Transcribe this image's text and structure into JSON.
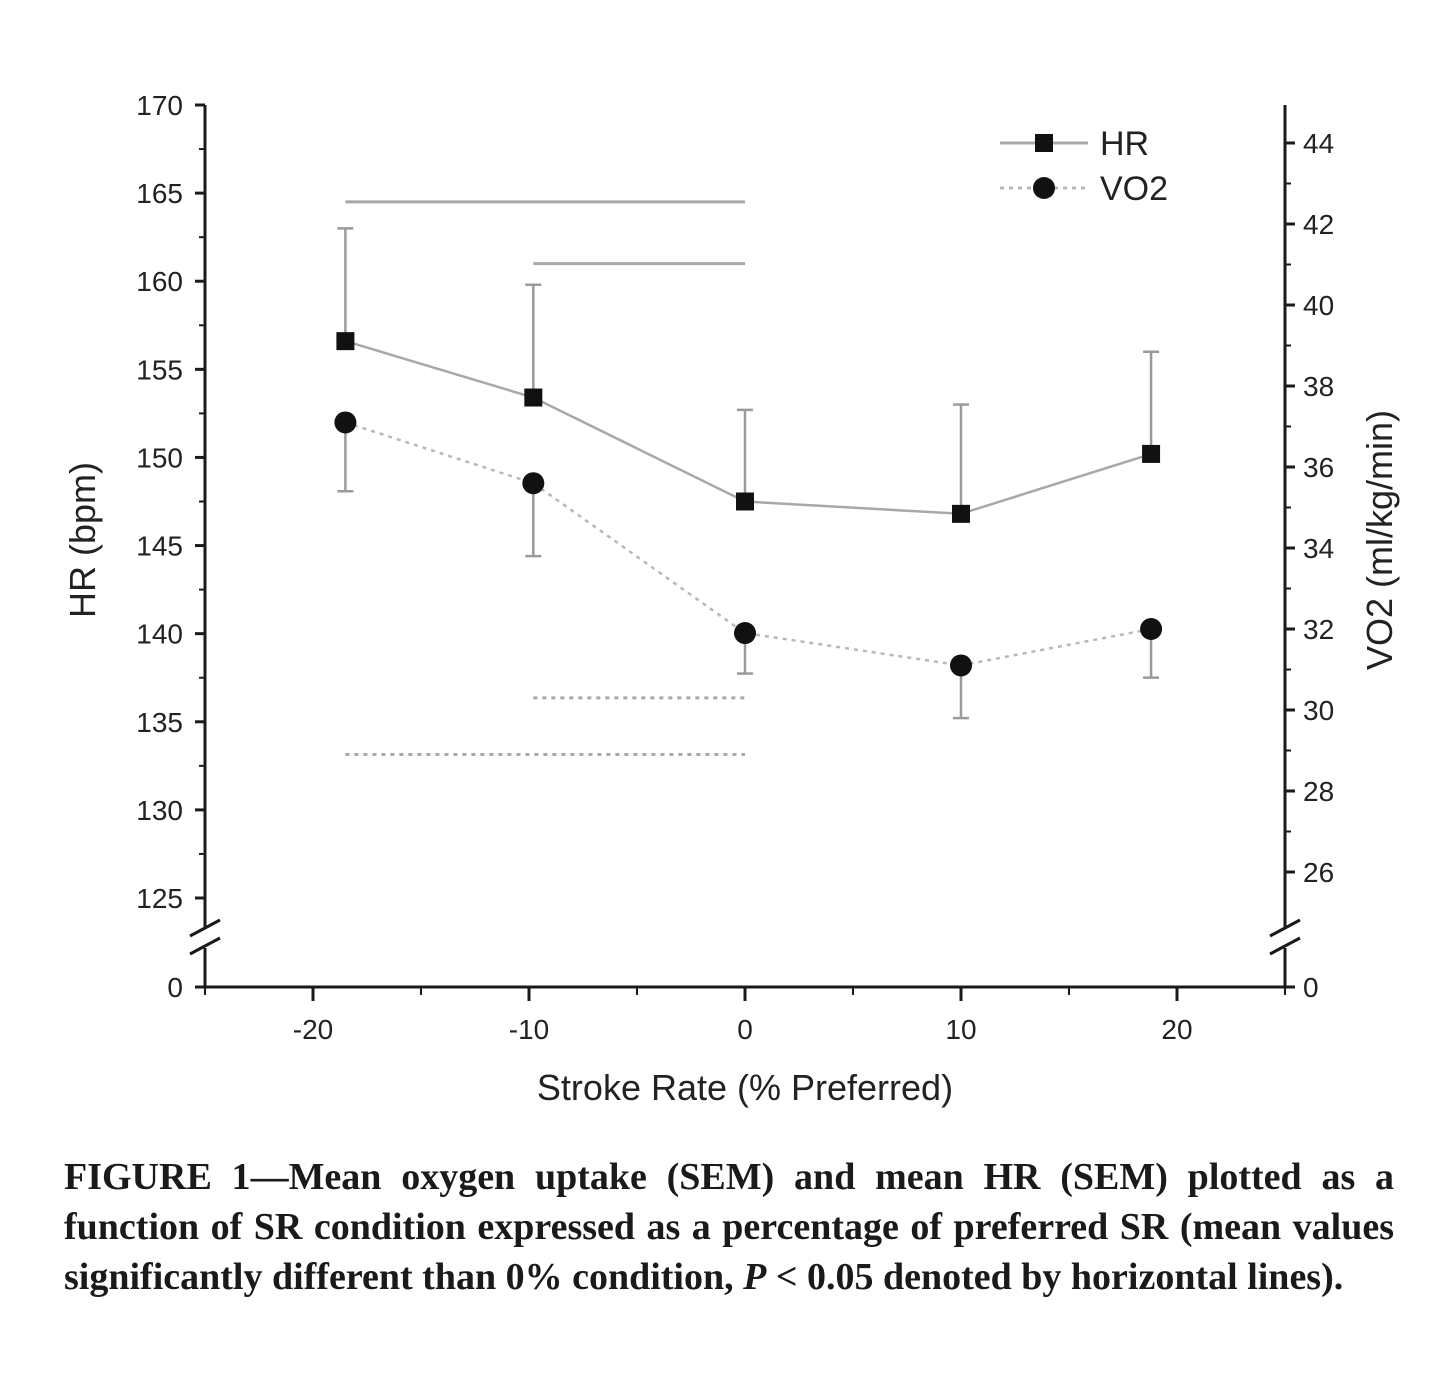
{
  "chart_data": {
    "type": "line",
    "x_axis": {
      "label": "Stroke Rate (% Preferred)",
      "ticks": [
        -20,
        -10,
        0,
        10,
        20
      ],
      "range": [
        -25,
        25
      ]
    },
    "y_left": {
      "label": "HR (bpm)",
      "range": [
        122.5,
        170
      ],
      "ticks": [
        125,
        130,
        135,
        140,
        145,
        150,
        155,
        160,
        165,
        170
      ],
      "break_zero_label": "0"
    },
    "y_right": {
      "label": "VO2 (ml/kg/min)",
      "range": [
        24.2,
        45
      ],
      "ticks": [
        26,
        28,
        30,
        32,
        34,
        36,
        38,
        40,
        42,
        44
      ],
      "break_zero_label": "0"
    },
    "series": [
      {
        "name": "HR",
        "axis": "left",
        "marker": "square",
        "line_style": "solid",
        "x": [
          -18.5,
          -9.8,
          0,
          10,
          18.8
        ],
        "y": [
          156.6,
          153.4,
          147.5,
          146.8,
          150.2
        ],
        "error_upper": [
          6.4,
          6.4,
          5.2,
          6.2,
          5.8
        ],
        "error_lower": [
          0,
          0,
          0,
          0,
          0
        ]
      },
      {
        "name": "VO2",
        "axis": "right",
        "marker": "circle",
        "line_style": "dotted",
        "x": [
          -18.5,
          -9.8,
          0,
          10,
          18.8
        ],
        "y": [
          37.1,
          35.6,
          31.9,
          31.1,
          32.0
        ],
        "error_upper": [
          0,
          0,
          0,
          0,
          0
        ],
        "error_lower": [
          1.7,
          1.8,
          1.0,
          1.3,
          1.2
        ]
      }
    ],
    "significance_lines": [
      {
        "axis": "left",
        "y": 164.5,
        "x_start": -18.5,
        "x_end": 0,
        "style": "solid"
      },
      {
        "axis": "left",
        "y": 161.0,
        "x_start": -9.8,
        "x_end": 0,
        "style": "solid"
      },
      {
        "axis": "right",
        "y": 30.3,
        "x_start": -9.8,
        "x_end": 0,
        "style": "dotted"
      },
      {
        "axis": "right",
        "y": 28.9,
        "x_start": -18.5,
        "x_end": 0,
        "style": "dotted"
      }
    ],
    "legend": {
      "position": "top-right",
      "entries": [
        "HR",
        "VO2"
      ]
    },
    "colors": {
      "axis": "#1a1a1a",
      "hr_line": "#a8a8a8",
      "vo2_line": "#b8b8b8",
      "marker": "#111111",
      "error": "#9a9a9a",
      "sig": "#a8a8a8"
    }
  },
  "caption": {
    "label": "FIGURE 1",
    "dash": "—",
    "text_1": "Mean oxygen uptake (SEM) and mean HR (SEM) plotted as a function of SR condition expressed as a percentage of preferred SR (mean values significantly different than 0% condition, ",
    "p_symbol": "P",
    "text_2": " < 0.05 denoted by horizontal lines)."
  }
}
